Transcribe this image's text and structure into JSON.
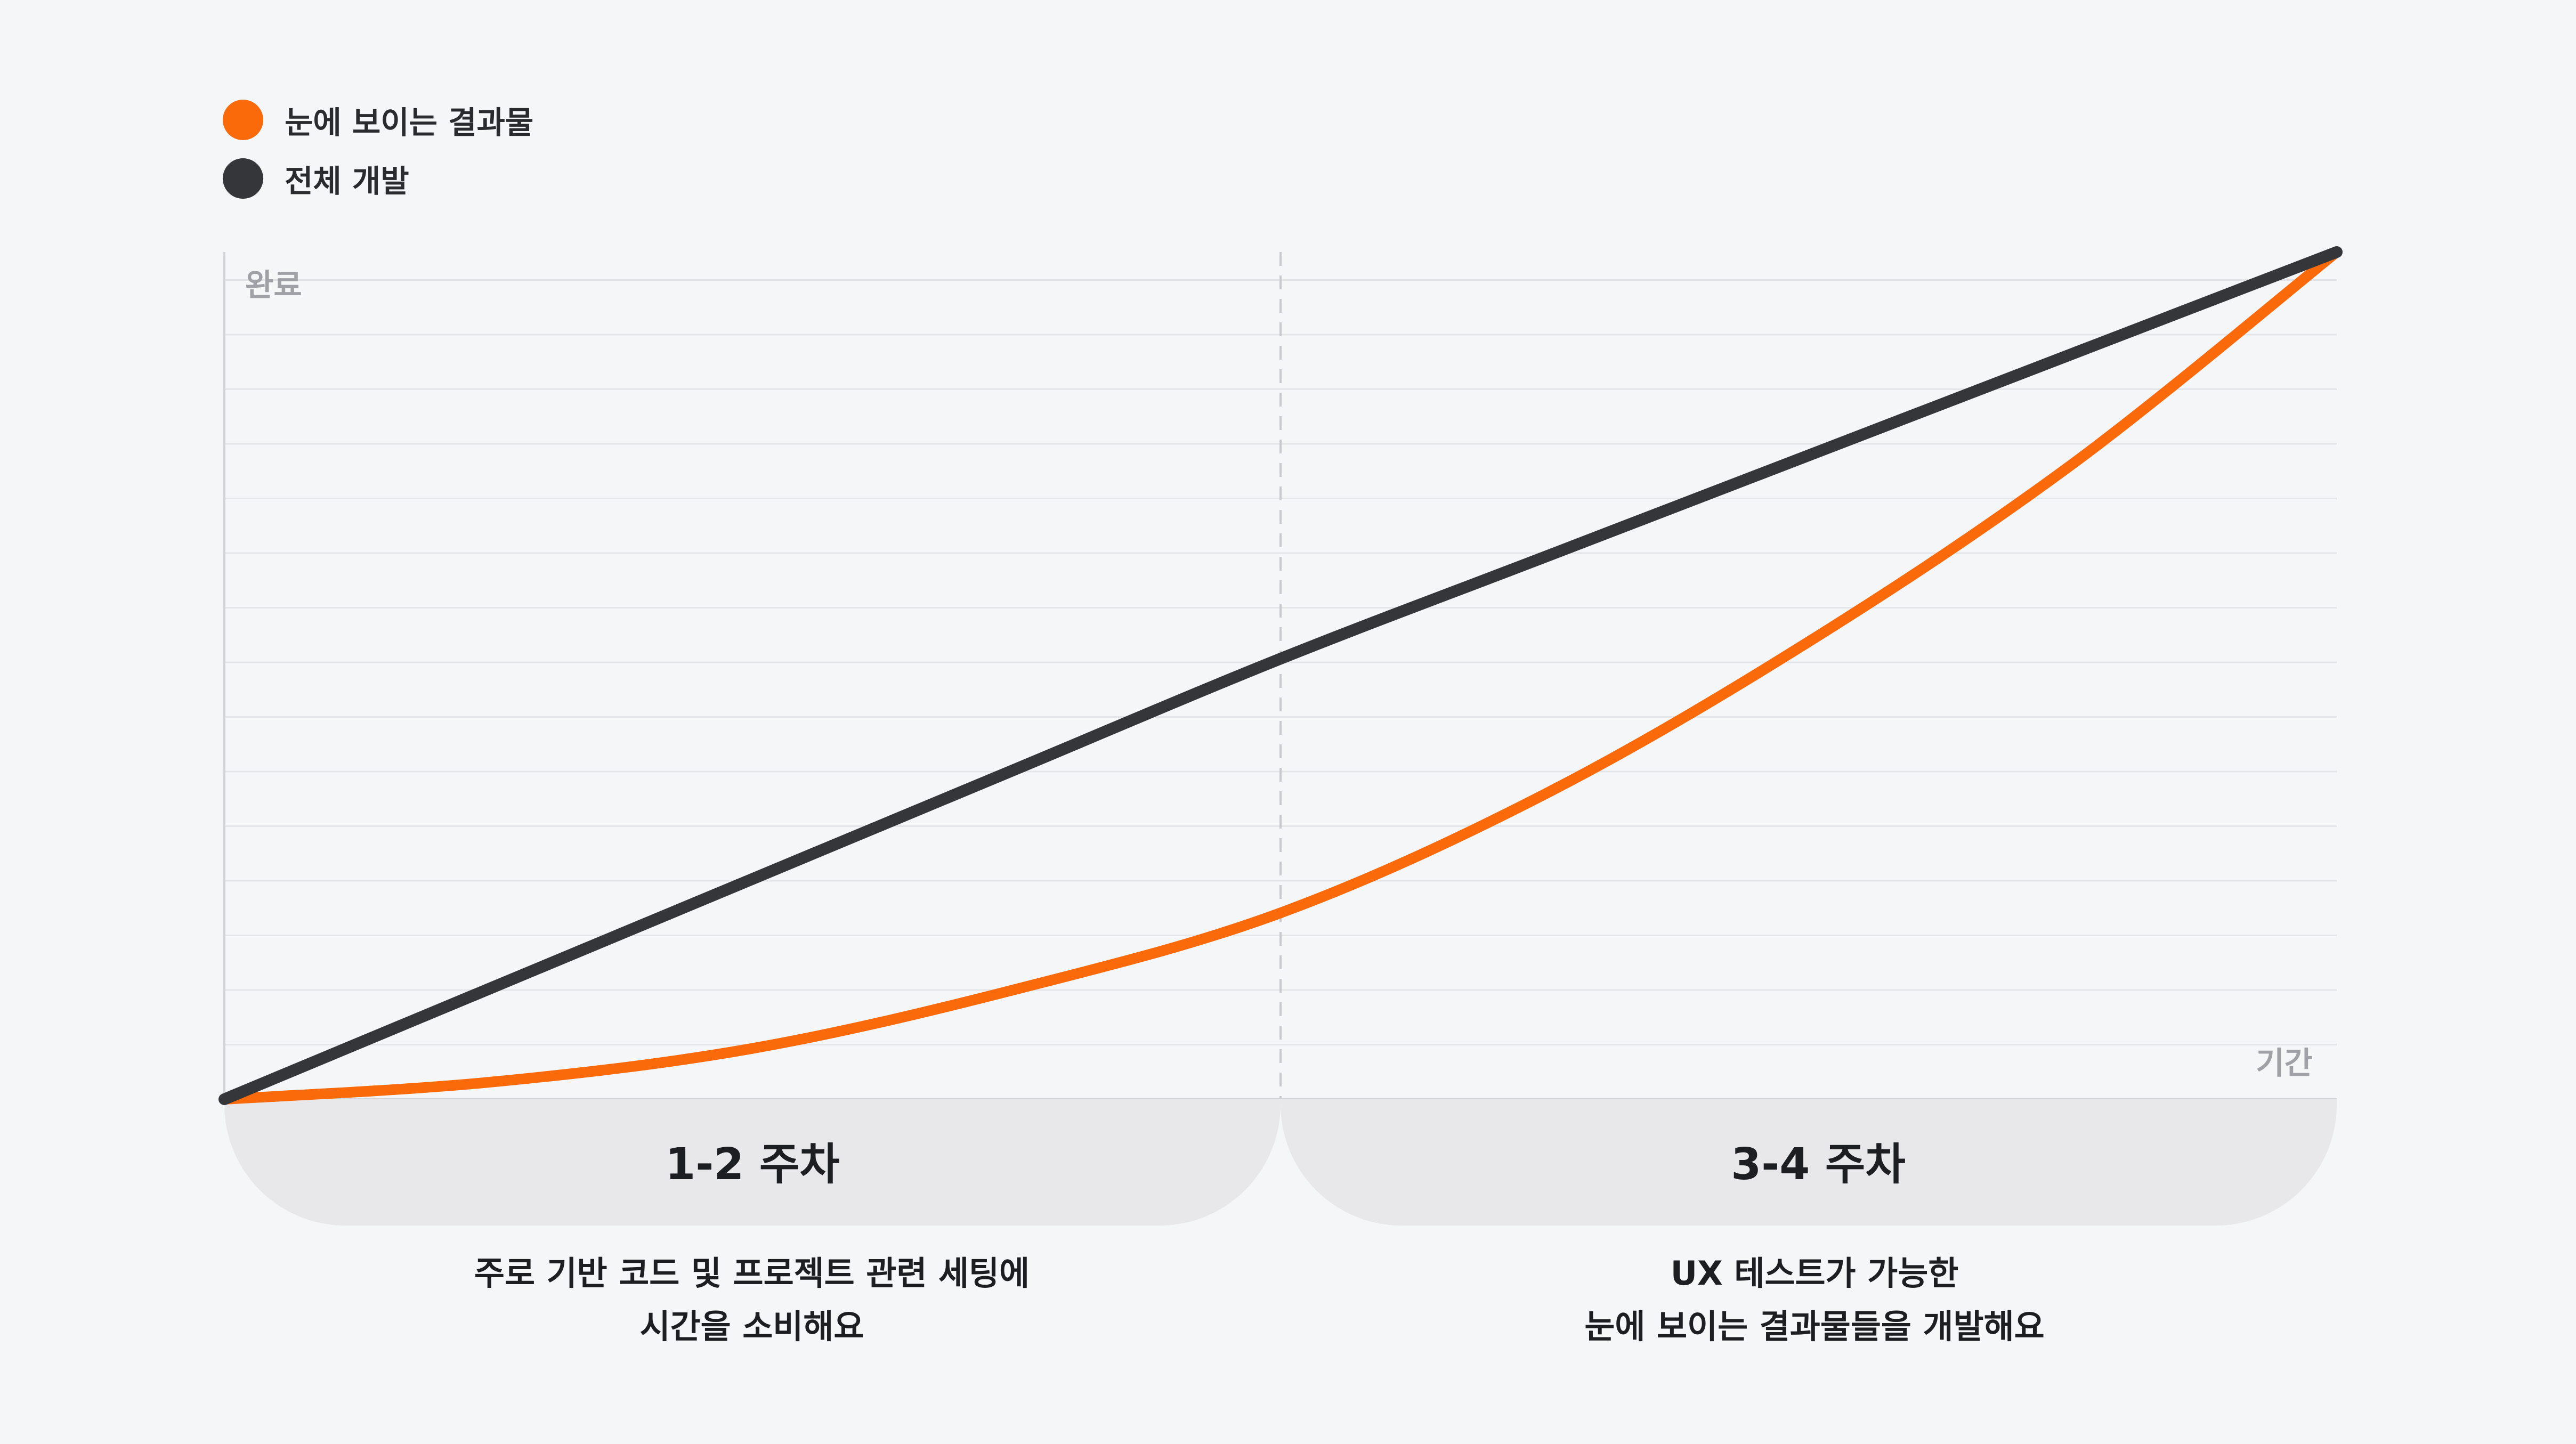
{
  "legend": [
    {
      "label": "눈에 보이는 결과물",
      "color": "#fa6a0a"
    },
    {
      "label": "전체 개발",
      "color": "#35363a"
    }
  ],
  "chart_data": {
    "type": "line",
    "title": "",
    "xlabel": "기간",
    "ylabel": "완료",
    "xlim": [
      0,
      4
    ],
    "ylim": [
      0,
      1
    ],
    "grid": true,
    "legend_position": "top-left",
    "phase_boundary": 2,
    "series": [
      {
        "name": "전체 개발",
        "color": "#35363a",
        "x": [
          0,
          0.5,
          1,
          1.5,
          2,
          2.5,
          3,
          3.5,
          4
        ],
        "y": [
          0,
          0.13,
          0.26,
          0.39,
          0.52,
          0.64,
          0.76,
          0.88,
          1.0
        ]
      },
      {
        "name": "눈에 보이는 결과물",
        "color": "#fa6a0a",
        "x": [
          0,
          0.5,
          1,
          1.5,
          2,
          2.5,
          3,
          3.5,
          4
        ],
        "y": [
          0,
          0.02,
          0.06,
          0.13,
          0.22,
          0.36,
          0.54,
          0.75,
          1.0
        ]
      }
    ]
  },
  "phases": [
    {
      "title": "1-2 주차",
      "desc_line1": "주로 기반 코드 및 프로젝트 관련 세팅에",
      "desc_line2": "시간을 소비해요"
    },
    {
      "title": "3-4 주차",
      "desc_line1": "UX 테스트가 가능한",
      "desc_line2": "눈에 보이는 결과물들을 개발해요"
    }
  ]
}
